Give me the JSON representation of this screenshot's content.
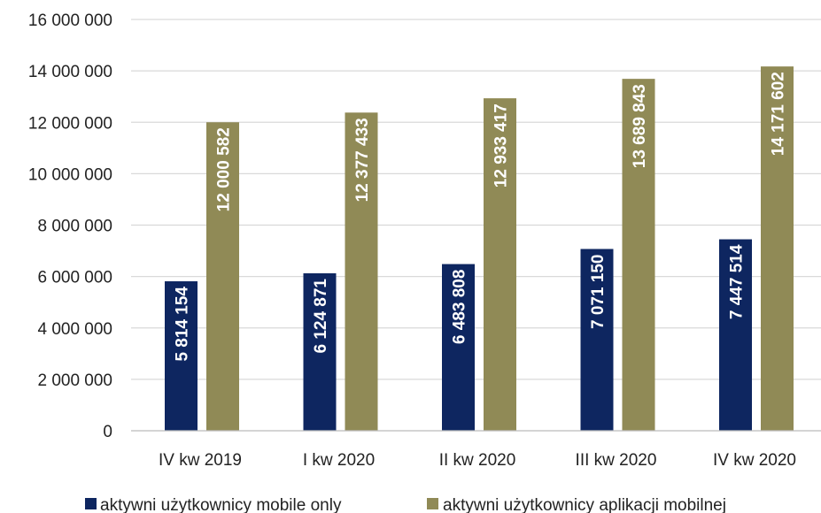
{
  "chart_data": {
    "type": "bar",
    "categories": [
      "IV kw 2019",
      "I kw 2020",
      "II kw 2020",
      "III kw 2020",
      "IV kw 2020"
    ],
    "series": [
      {
        "name": "aktywni użytkownicy mobile only",
        "color": "#0e2660",
        "values": [
          5814154,
          6124871,
          6483808,
          7071150,
          7447514
        ],
        "labels": [
          "5 814 154",
          "6 124 871",
          "6 483 808",
          "7 071 150",
          "7 447 514"
        ]
      },
      {
        "name": "aktywni użytkownicy aplikacji mobilnej",
        "color": "#908a56",
        "values": [
          12000582,
          12377433,
          12933417,
          13689843,
          14171602
        ],
        "labels": [
          "12 000 582",
          "12 377 433",
          "12 933 417",
          "13 689 843",
          "14 171 602"
        ]
      }
    ],
    "ylim": [
      0,
      16000000
    ],
    "yticks": [
      0,
      2000000,
      4000000,
      6000000,
      8000000,
      10000000,
      12000000,
      14000000,
      16000000
    ],
    "ytick_labels": [
      "0",
      "2 000 000",
      "4 000 000",
      "6 000 000",
      "8 000 000",
      "10 000 000",
      "12 000 000",
      "14 000 000",
      "16 000 000"
    ],
    "grid": true,
    "legend_position": "bottom"
  }
}
